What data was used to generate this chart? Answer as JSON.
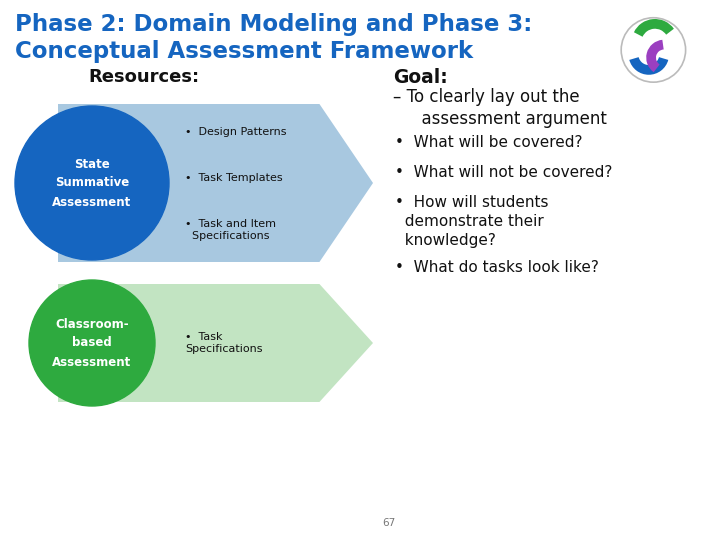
{
  "title_line1": "Phase 2: Domain Modeling and Phase 3:",
  "title_line2": "Conceptual Assessment Framework",
  "title_color": "#1565C0",
  "bg_color": "#FFFFFF",
  "resources_label": "Resources:",
  "arrow1_color": "#A8C8E0",
  "arrow2_color": "#C2E4C2",
  "circle1_color": "#1565C0",
  "circle2_color": "#2EAA3F",
  "circle1_text": "State\nSummative\nAssessment",
  "circle2_text": "Classroom-\nbased\nAssessment",
  "arrow1_items": [
    "Design Patterns",
    "Task Templates",
    "Task and Item\n  Specifications"
  ],
  "arrow2_items": [
    "Task\nSpecifications"
  ],
  "goal_title": "Goal:",
  "goal_sub": "– To clearly lay out the",
  "goal_sub2": "  assessment argument",
  "goal_bullets": [
    "What will be covered?",
    "What will not be covered?",
    "How will students\n  demonstrate their\n  knowledge?",
    "What do tasks look like?"
  ],
  "footer_number": "67",
  "logo_green": "#2EAA3F",
  "logo_blue": "#1565C0",
  "logo_purple": "#9B3FC0"
}
